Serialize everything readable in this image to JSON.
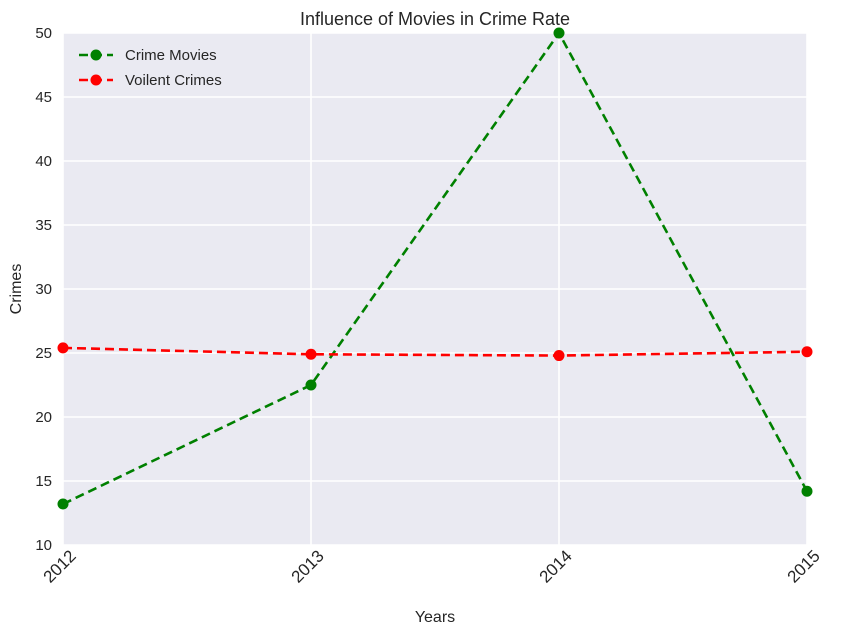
{
  "chart_data": {
    "type": "line",
    "title": "Influence of Movies in Crime Rate",
    "xlabel": "Years",
    "ylabel": "Crimes",
    "x": [
      2012,
      2013,
      2014,
      2015
    ],
    "xticks": [
      "2012",
      "2013",
      "2014",
      "2015"
    ],
    "yticks": [
      "10",
      "15",
      "20",
      "25",
      "30",
      "35",
      "40",
      "45",
      "50"
    ],
    "xlim": [
      2012,
      2015
    ],
    "ylim": [
      10,
      50
    ],
    "grid": true,
    "legend_position": "top-left",
    "series": [
      {
        "name": "Crime Movies",
        "values": [
          13.2,
          22.5,
          50,
          14.2
        ],
        "color": "#008000",
        "line_style": "dashed",
        "marker": "circle"
      },
      {
        "name": "Voilent Crimes",
        "values": [
          25.4,
          24.9,
          24.8,
          25.1
        ],
        "color": "#ff0000",
        "line_style": "dashed",
        "marker": "circle"
      }
    ]
  }
}
